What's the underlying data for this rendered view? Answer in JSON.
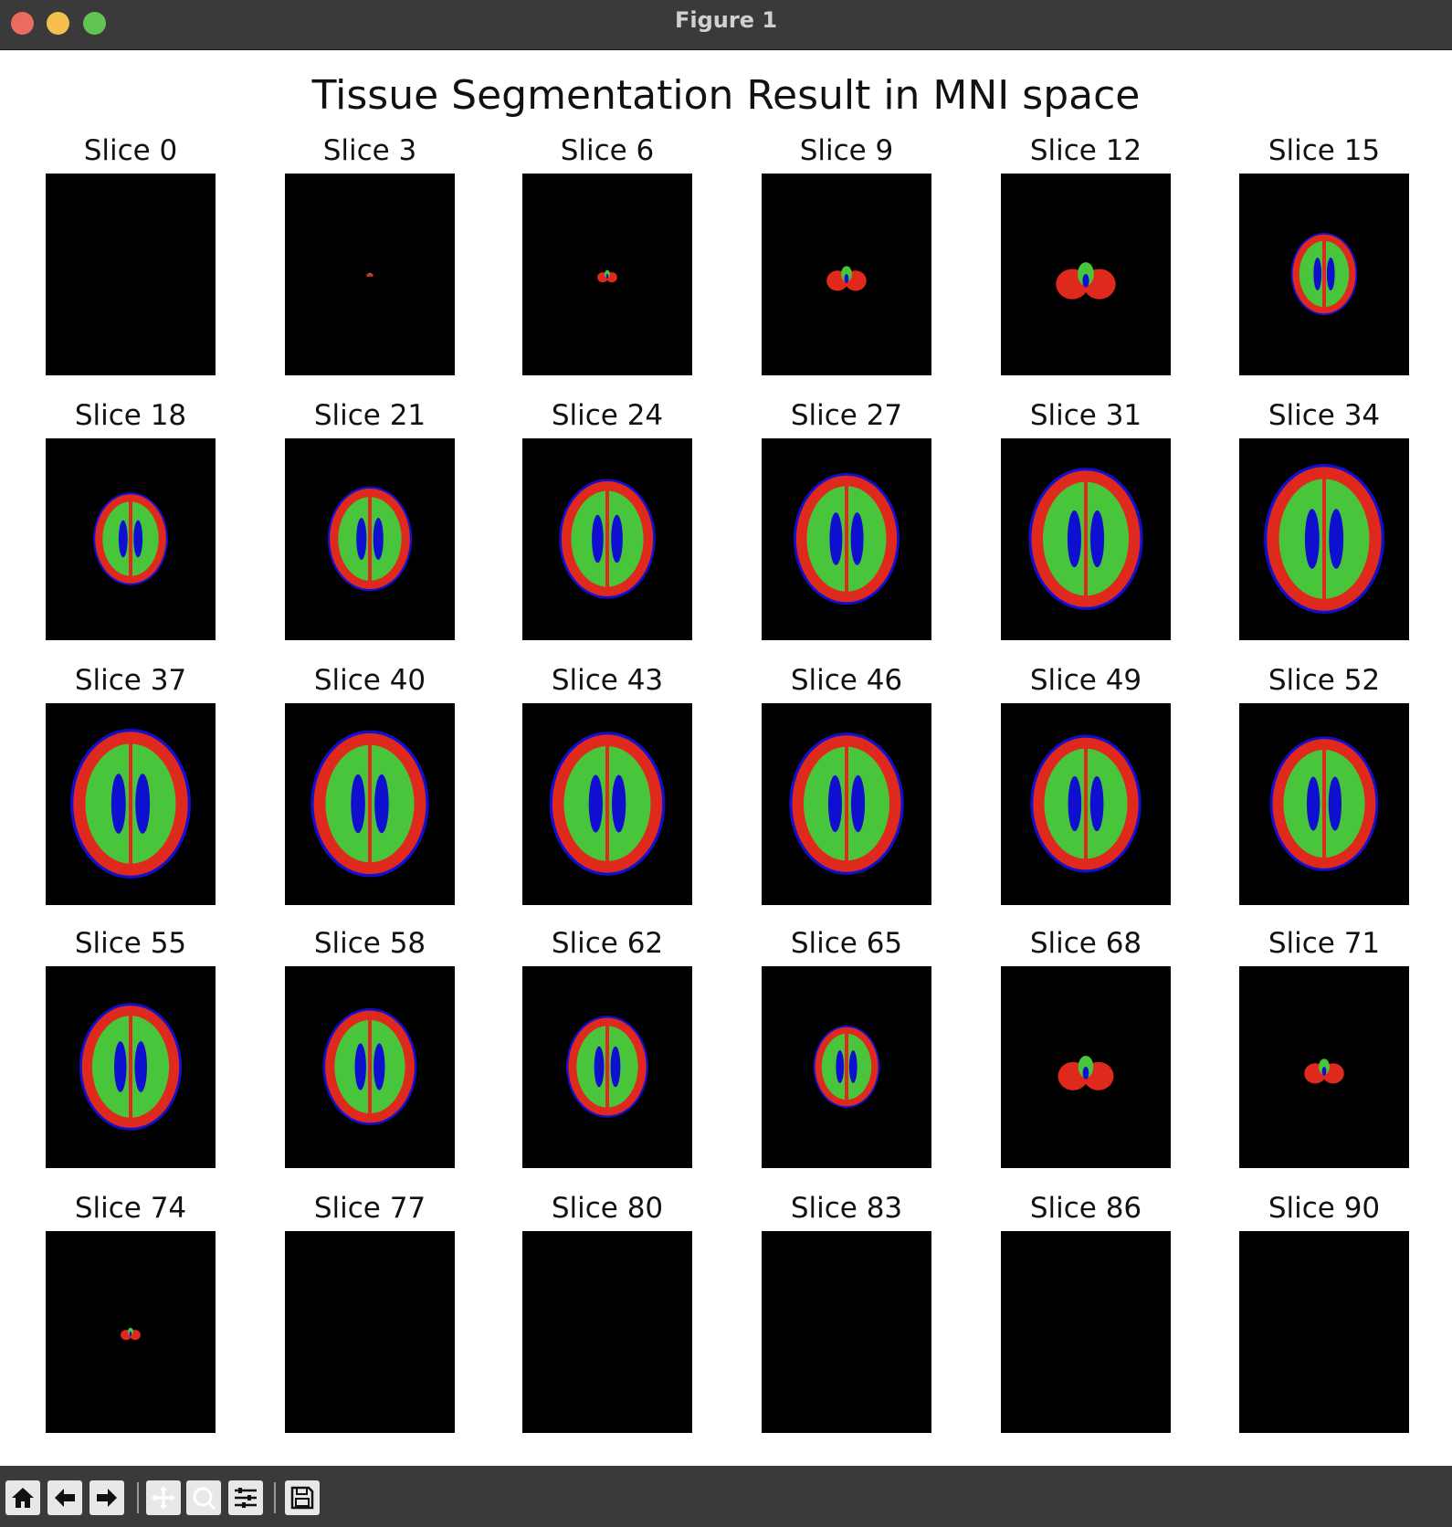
{
  "window": {
    "title": "Figure 1"
  },
  "figure": {
    "title": "Tissue Segmentation Result in MNI space",
    "colors": {
      "gm": "#e0291d",
      "wm": "#48c53a",
      "csf": "#0f0fd0",
      "background": "#000000"
    },
    "slices": [
      {
        "label": "Slice 0",
        "brain": 0.0
      },
      {
        "label": "Slice 3",
        "brain": 0.05
      },
      {
        "label": "Slice 6",
        "brain": 0.15
      },
      {
        "label": "Slice 9",
        "brain": 0.3
      },
      {
        "label": "Slice 12",
        "brain": 0.45
      },
      {
        "label": "Slice 15",
        "brain": 0.55
      },
      {
        "label": "Slice 18",
        "brain": 0.62
      },
      {
        "label": "Slice 21",
        "brain": 0.7
      },
      {
        "label": "Slice 24",
        "brain": 0.8
      },
      {
        "label": "Slice 27",
        "brain": 0.88
      },
      {
        "label": "Slice 31",
        "brain": 0.95
      },
      {
        "label": "Slice 34",
        "brain": 1.0
      },
      {
        "label": "Slice 37",
        "brain": 1.0
      },
      {
        "label": "Slice 40",
        "brain": 0.98
      },
      {
        "label": "Slice 43",
        "brain": 0.96
      },
      {
        "label": "Slice 46",
        "brain": 0.95
      },
      {
        "label": "Slice 49",
        "brain": 0.92
      },
      {
        "label": "Slice 52",
        "brain": 0.9
      },
      {
        "label": "Slice 55",
        "brain": 0.85
      },
      {
        "label": "Slice 58",
        "brain": 0.78
      },
      {
        "label": "Slice 62",
        "brain": 0.68
      },
      {
        "label": "Slice 65",
        "brain": 0.55
      },
      {
        "label": "Slice 68",
        "brain": 0.42
      },
      {
        "label": "Slice 71",
        "brain": 0.3
      },
      {
        "label": "Slice 74",
        "brain": 0.15
      },
      {
        "label": "Slice 77",
        "brain": 0.0
      },
      {
        "label": "Slice 80",
        "brain": 0.0
      },
      {
        "label": "Slice 83",
        "brain": 0.0
      },
      {
        "label": "Slice 86",
        "brain": 0.0
      },
      {
        "label": "Slice 90",
        "brain": 0.0
      }
    ]
  },
  "toolbar": {
    "buttons": [
      {
        "icon": "home-icon"
      },
      {
        "icon": "back-arrow-icon"
      },
      {
        "icon": "forward-arrow-icon"
      },
      {
        "icon": "pan-icon"
      },
      {
        "icon": "zoom-icon"
      },
      {
        "icon": "configure-subplots-icon"
      },
      {
        "icon": "save-icon"
      }
    ]
  }
}
